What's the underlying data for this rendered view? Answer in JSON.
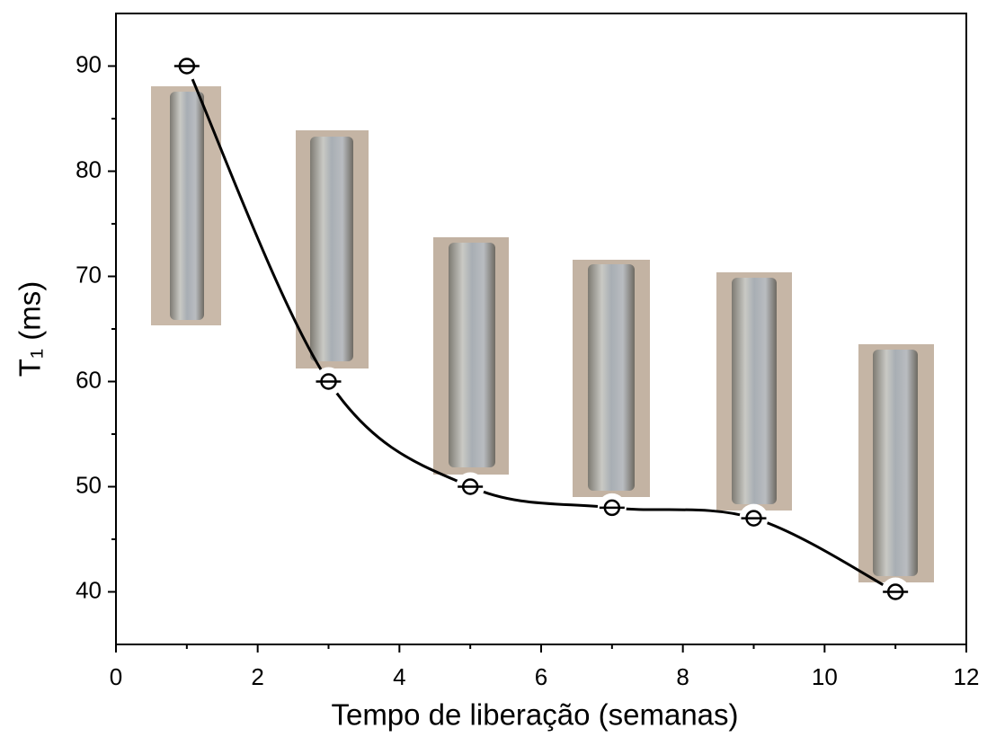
{
  "chart_data": {
    "type": "scatter",
    "x_label": "Tempo de liberação (semanas)",
    "y_label": "T₁ (ms)",
    "x": [
      1,
      3,
      5,
      7,
      9,
      11
    ],
    "values": [
      90,
      60,
      50,
      48,
      47,
      40
    ],
    "color": "#000000",
    "xlim": [
      0,
      12
    ],
    "xticks": [
      0,
      2,
      4,
      6,
      8,
      10,
      12
    ],
    "ylim": [
      35,
      95
    ],
    "yticks": [
      40,
      50,
      60,
      70,
      80,
      90
    ]
  }
}
